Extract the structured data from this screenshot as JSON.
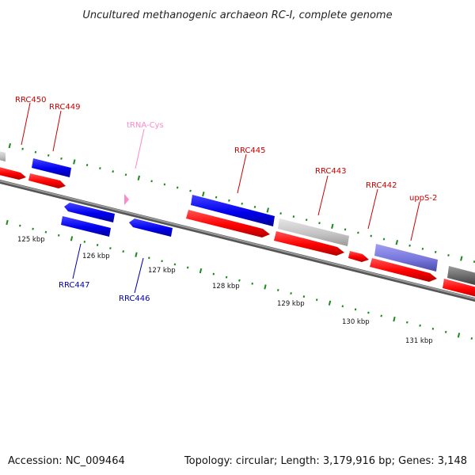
{
  "title": "Uncultured methanogenic archaeon RC-I, complete genome",
  "footer": {
    "accession": "Accession: NC_009464",
    "summary": "Topology: circular; Length: 3,179,916 bp; Genes: 3,148"
  },
  "colors": {
    "forward_label": "#cc0000",
    "reverse_label": "#0000aa",
    "trna_label": "#ff88c8",
    "tick": "#1a8a1a",
    "backbone": "#888888",
    "cds_forward": "#ff0000",
    "cds_reverse": "#0000ee",
    "hypothetical": "#c8c8c8",
    "highlight": "#7777dd",
    "dark_gene": "#666666"
  },
  "scale": {
    "unit": "kbp",
    "ticks": [
      "125 kbp",
      "126 kbp",
      "127 kbp",
      "128 kbp",
      "129 kbp",
      "130 kbp",
      "131 kbp"
    ]
  },
  "gene_labels": {
    "rrc450": "RRC450",
    "rrc449": "RRC449",
    "trna_cys": "tRNA-Cys",
    "rrc445": "RRC445",
    "rrc443": "RRC443",
    "rrc442": "RRC442",
    "upps2": "uppS-2",
    "rrc447": "RRC447",
    "rrc446": "RRC446"
  }
}
